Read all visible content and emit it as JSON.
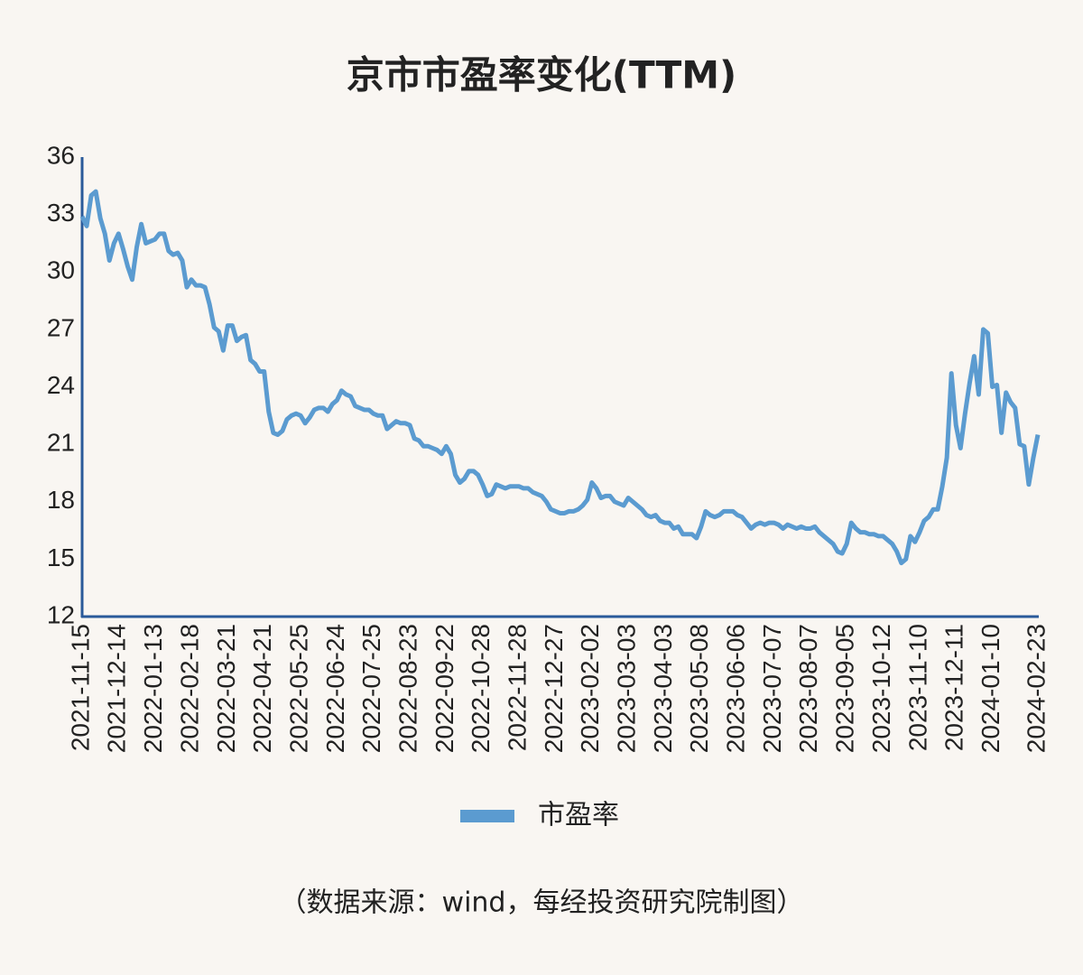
{
  "chart_data": {
    "type": "line",
    "title": "京市市盈率变化(TTM)",
    "source": "（数据来源：wind，每经投资研究院制图）",
    "categories": [
      "2021-11-15",
      null,
      null,
      null,
      null,
      null,
      null,
      null,
      "2021-12-14",
      null,
      null,
      null,
      null,
      null,
      null,
      null,
      "2022-01-13",
      null,
      null,
      null,
      null,
      null,
      null,
      null,
      "2022-02-18",
      null,
      null,
      null,
      null,
      null,
      null,
      null,
      "2022-03-21",
      null,
      null,
      null,
      null,
      null,
      null,
      null,
      "2022-04-21",
      null,
      null,
      null,
      null,
      null,
      null,
      null,
      "2022-05-25",
      null,
      null,
      null,
      null,
      null,
      null,
      null,
      "2022-06-24",
      null,
      null,
      null,
      null,
      null,
      null,
      null,
      "2022-07-25",
      null,
      null,
      null,
      null,
      null,
      null,
      null,
      "2022-08-23",
      null,
      null,
      null,
      null,
      null,
      null,
      null,
      "2022-09-22",
      null,
      null,
      null,
      null,
      null,
      null,
      null,
      "2022-10-28",
      null,
      null,
      null,
      null,
      null,
      null,
      null,
      "2022-11-28",
      null,
      null,
      null,
      null,
      null,
      null,
      null,
      "2022-12-27",
      null,
      null,
      null,
      null,
      null,
      null,
      null,
      "2023-02-02",
      null,
      null,
      null,
      null,
      null,
      null,
      null,
      "2023-03-03",
      null,
      null,
      null,
      null,
      null,
      null,
      null,
      "2023-04-03",
      null,
      null,
      null,
      null,
      null,
      null,
      null,
      "2023-05-08",
      null,
      null,
      null,
      null,
      null,
      null,
      null,
      "2023-06-06",
      null,
      null,
      null,
      null,
      null,
      null,
      null,
      "2023-07-07",
      null,
      null,
      null,
      null,
      null,
      null,
      null,
      "2023-08-07",
      null,
      null,
      null,
      null,
      null,
      null,
      null,
      "2023-09-05",
      null,
      null,
      null,
      null,
      null,
      null,
      null,
      "2023-10-12",
      null,
      null,
      null,
      null,
      null,
      null,
      null,
      "2023-11-10",
      null,
      null,
      null,
      null,
      null,
      null,
      null,
      "2023-12-11",
      null,
      null,
      null,
      null,
      null,
      null,
      null,
      "2024-01-10",
      null,
      null,
      null,
      null,
      null,
      null,
      null,
      null,
      null,
      "2024-02-23"
    ],
    "series": [
      {
        "name": "市盈率",
        "color": "#5b9bd0",
        "values": [
          32.9,
          32.4,
          34.0,
          34.2,
          32.8,
          32.0,
          30.6,
          31.5,
          32.0,
          31.2,
          30.3,
          29.6,
          31.3,
          32.5,
          31.5,
          31.6,
          31.7,
          32.0,
          32.0,
          31.1,
          30.9,
          31.0,
          30.6,
          29.2,
          29.6,
          29.3,
          29.3,
          29.2,
          28.3,
          27.1,
          26.9,
          25.9,
          27.2,
          27.2,
          26.4,
          26.6,
          26.7,
          25.4,
          25.2,
          24.8,
          24.8,
          22.7,
          21.6,
          21.5,
          21.7,
          22.3,
          22.5,
          22.6,
          22.5,
          22.1,
          22.4,
          22.8,
          22.9,
          22.9,
          22.7,
          23.1,
          23.3,
          23.8,
          23.6,
          23.5,
          23.0,
          22.9,
          22.8,
          22.8,
          22.6,
          22.5,
          22.5,
          21.8,
          22.0,
          22.2,
          22.1,
          22.1,
          22.0,
          21.3,
          21.2,
          20.9,
          20.9,
          20.8,
          20.7,
          20.5,
          20.9,
          20.5,
          19.4,
          19.0,
          19.2,
          19.6,
          19.6,
          19.4,
          18.9,
          18.3,
          18.4,
          18.9,
          18.8,
          18.7,
          18.8,
          18.8,
          18.8,
          18.7,
          18.7,
          18.5,
          18.4,
          18.3,
          18.0,
          17.6,
          17.5,
          17.4,
          17.4,
          17.5,
          17.5,
          17.6,
          17.8,
          18.1,
          19.0,
          18.7,
          18.2,
          18.3,
          18.3,
          18.0,
          17.9,
          17.8,
          18.2,
          18.0,
          17.8,
          17.6,
          17.3,
          17.2,
          17.3,
          17.0,
          16.9,
          16.9,
          16.6,
          16.7,
          16.3,
          16.3,
          16.3,
          16.1,
          16.7,
          17.5,
          17.3,
          17.2,
          17.3,
          17.5,
          17.5,
          17.5,
          17.3,
          17.2,
          16.9,
          16.6,
          16.8,
          16.9,
          16.8,
          16.9,
          16.9,
          16.8,
          16.6,
          16.8,
          16.7,
          16.6,
          16.7,
          16.6,
          16.6,
          16.7,
          16.4,
          16.2,
          16.0,
          15.8,
          15.4,
          15.3,
          15.8,
          16.9,
          16.6,
          16.4,
          16.4,
          16.3,
          16.3,
          16.2,
          16.2,
          16.0,
          15.8,
          15.4,
          14.8,
          15.0,
          16.2,
          15.9,
          16.4,
          17.0,
          17.2,
          17.6,
          17.6,
          18.8,
          20.3,
          24.7,
          22.0,
          20.8,
          22.6,
          24.2,
          25.6,
          23.6,
          27.0,
          26.8,
          24.0,
          24.1,
          21.6,
          23.7,
          23.2,
          22.9,
          21.0,
          20.9,
          18.9,
          20.3,
          21.5
        ]
      }
    ],
    "ylim": [
      12,
      36
    ],
    "yticks": [
      12,
      15,
      18,
      21,
      24,
      27,
      30,
      33,
      36
    ],
    "grid": false,
    "legend": "bottom"
  }
}
